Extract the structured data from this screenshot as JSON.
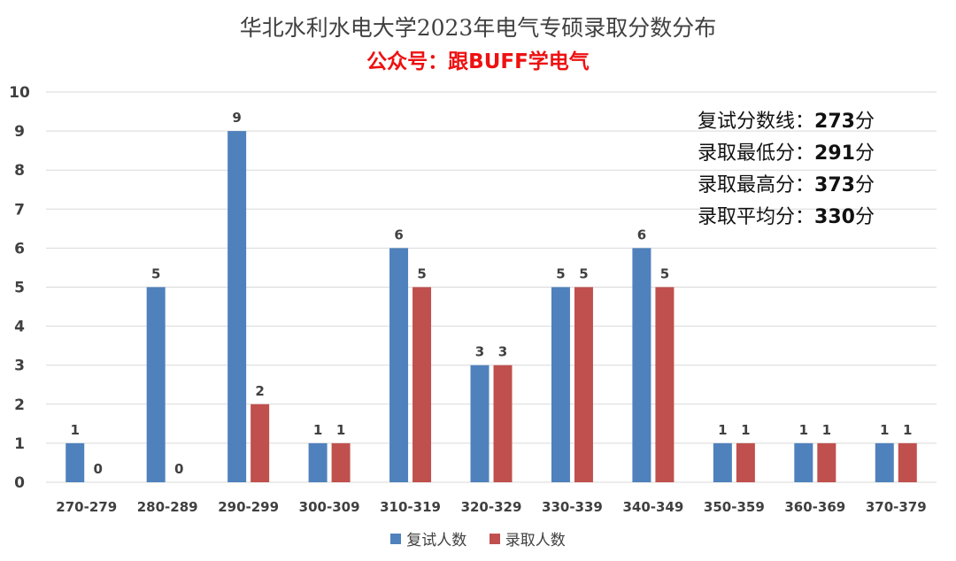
{
  "chart_data": {
    "type": "bar",
    "title": "华北水利水电大学2023年电气专硕录取分数分布",
    "subtitle": "公众号：跟BUFF学电气",
    "categories": [
      "270-279",
      "280-289",
      "290-299",
      "300-309",
      "310-319",
      "320-329",
      "330-339",
      "340-349",
      "350-359",
      "360-369",
      "370-379"
    ],
    "series": [
      {
        "name": "复试人数",
        "values": [
          1,
          5,
          9,
          1,
          6,
          3,
          5,
          6,
          1,
          1,
          1
        ],
        "color": "#4f81bd"
      },
      {
        "name": "录取人数",
        "values": [
          0,
          0,
          2,
          1,
          5,
          3,
          5,
          5,
          1,
          1,
          1
        ],
        "color": "#c0504d"
      }
    ],
    "ylim": [
      0,
      10
    ],
    "yticks": [
      "0",
      "1",
      "2",
      "3",
      "4",
      "5",
      "6",
      "7",
      "8",
      "9",
      "10"
    ],
    "grid": true,
    "legend_position": "bottom",
    "data_labels": true
  },
  "stats": [
    {
      "label": "复试分数线：",
      "value": "273",
      "unit": "分"
    },
    {
      "label": "录取最低分：",
      "value": "291",
      "unit": "分"
    },
    {
      "label": "录取最高分：",
      "value": "373",
      "unit": "分"
    },
    {
      "label": "录取平均分：",
      "value": "330",
      "unit": "分"
    }
  ]
}
